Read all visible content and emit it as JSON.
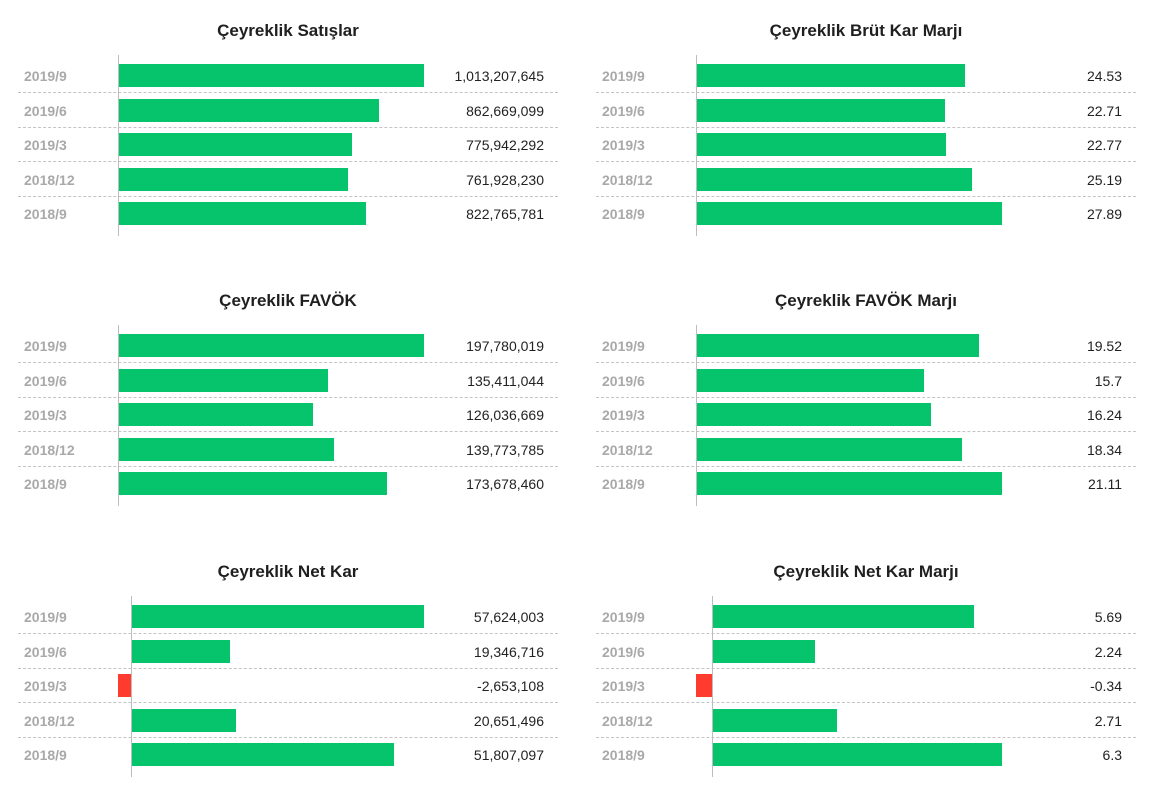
{
  "colors": {
    "positive": "#05c46b",
    "negative": "#ff3b30"
  },
  "chart_data": [
    {
      "type": "bar",
      "orientation": "horizontal",
      "title": "Çeyreklik Satışlar",
      "categories": [
        "2019/9",
        "2019/6",
        "2019/3",
        "2018/12",
        "2018/9"
      ],
      "values": [
        1013207645,
        862669099,
        775942292,
        761928230,
        822765781
      ],
      "labels": [
        "1,013,207,645",
        "862,669,099",
        "775,942,292",
        "761,928,230",
        "822,765,781"
      ]
    },
    {
      "type": "bar",
      "orientation": "horizontal",
      "title": "Çeyreklik Brüt Kar Marjı",
      "categories": [
        "2019/9",
        "2019/6",
        "2019/3",
        "2018/12",
        "2018/9"
      ],
      "values": [
        24.53,
        22.71,
        22.77,
        25.19,
        27.89
      ],
      "labels": [
        "24.53",
        "22.71",
        "22.77",
        "25.19",
        "27.89"
      ]
    },
    {
      "type": "bar",
      "orientation": "horizontal",
      "title": "Çeyreklik FAVÖK",
      "categories": [
        "2019/9",
        "2019/6",
        "2019/3",
        "2018/12",
        "2018/9"
      ],
      "values": [
        197780019,
        135411044,
        126036669,
        139773785,
        173678460
      ],
      "labels": [
        "197,780,019",
        "135,411,044",
        "126,036,669",
        "139,773,785",
        "173,678,460"
      ]
    },
    {
      "type": "bar",
      "orientation": "horizontal",
      "title": "Çeyreklik FAVÖK Marjı",
      "categories": [
        "2019/9",
        "2019/6",
        "2019/3",
        "2018/12",
        "2018/9"
      ],
      "values": [
        19.52,
        15.7,
        16.24,
        18.34,
        21.11
      ],
      "labels": [
        "19.52",
        "15.7",
        "16.24",
        "18.34",
        "21.11"
      ]
    },
    {
      "type": "bar",
      "orientation": "horizontal",
      "title": "Çeyreklik Net Kar",
      "categories": [
        "2019/9",
        "2019/6",
        "2019/3",
        "2018/12",
        "2018/9"
      ],
      "values": [
        57624003,
        19346716,
        -2653108,
        20651496,
        51807097
      ],
      "labels": [
        "57,624,003",
        "19,346,716",
        "-2,653,108",
        "20,651,496",
        "51,807,097"
      ]
    },
    {
      "type": "bar",
      "orientation": "horizontal",
      "title": "Çeyreklik Net Kar Marjı",
      "categories": [
        "2019/9",
        "2019/6",
        "2019/3",
        "2018/12",
        "2018/9"
      ],
      "values": [
        5.69,
        2.24,
        -0.34,
        2.71,
        6.3
      ],
      "labels": [
        "5.69",
        "2.24",
        "-0.34",
        "2.71",
        "6.3"
      ]
    }
  ]
}
